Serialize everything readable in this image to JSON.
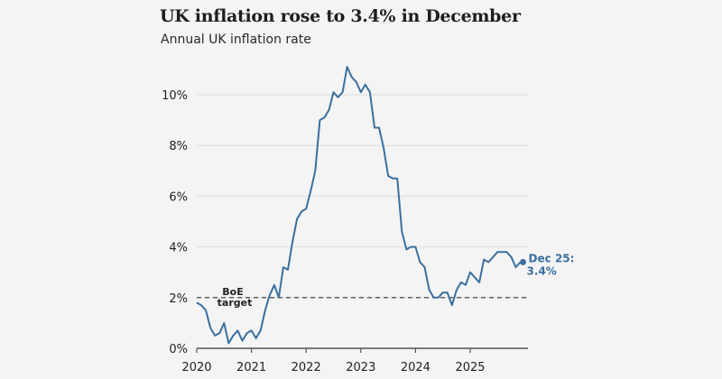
{
  "chart_data": {
    "type": "line",
    "title": "UK inflation rose to 3.4% in December",
    "subtitle": "Annual UK inflation rate",
    "xlabel": "",
    "ylabel": "",
    "ylim": [
      0,
      11.5
    ],
    "xlim": [
      2020,
      2026
    ],
    "yticks": [
      0,
      2,
      4,
      6,
      8,
      10
    ],
    "ytick_labels": [
      "0%",
      "2%",
      "4%",
      "6%",
      "8%",
      "10%"
    ],
    "xticks": [
      2020,
      2021,
      2022,
      2023,
      2024,
      2025
    ],
    "xtick_labels": [
      "2020",
      "2021",
      "2022",
      "2023",
      "2024",
      "2025"
    ],
    "grid": "horizontal",
    "series": [
      {
        "name": "Annual UK inflation rate",
        "color": "#3a6f9f",
        "start": "Jan 2020",
        "frequency": "monthly",
        "values": [
          1.8,
          1.7,
          1.5,
          0.8,
          0.5,
          0.6,
          1.0,
          0.2,
          0.5,
          0.7,
          0.3,
          0.6,
          0.7,
          0.4,
          0.7,
          1.5,
          2.1,
          2.5,
          2.0,
          3.2,
          3.1,
          4.2,
          5.1,
          5.4,
          5.5,
          6.2,
          7.0,
          9.0,
          9.1,
          9.4,
          10.1,
          9.9,
          10.1,
          11.1,
          10.7,
          10.5,
          10.1,
          10.4,
          10.1,
          8.7,
          8.7,
          7.9,
          6.8,
          6.7,
          6.7,
          4.6,
          3.9,
          4.0,
          4.0,
          3.4,
          3.2,
          2.3,
          2.0,
          2.0,
          2.2,
          2.2,
          1.7,
          2.3,
          2.6,
          2.5,
          3.0,
          2.8,
          2.6,
          3.5,
          3.4,
          3.6,
          3.8,
          3.8,
          3.8,
          3.6,
          3.2,
          3.4
        ]
      }
    ],
    "reference_line": {
      "value": 2,
      "label_line1": "BoE",
      "label_line2": "target"
    },
    "end_label": {
      "line1": "Dec 25:",
      "line2": "3.4%"
    }
  }
}
